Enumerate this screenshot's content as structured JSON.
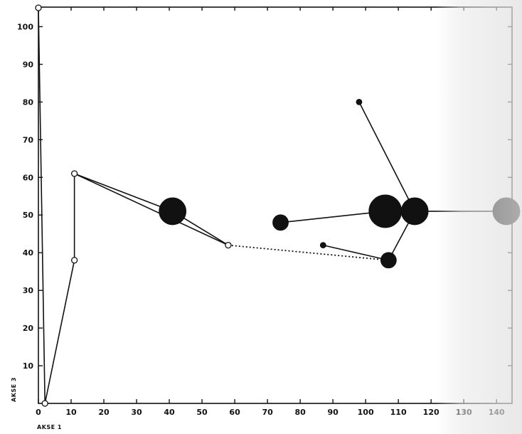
{
  "chart_data": {
    "type": "scatter",
    "title": "",
    "xlabel": "AKSE 1",
    "ylabel": "AKSE 3",
    "xlim": [
      0,
      143
    ],
    "ylim": [
      0,
      105
    ],
    "xticks": [
      0,
      10,
      20,
      30,
      40,
      50,
      60,
      70,
      80,
      90,
      100,
      110,
      120,
      130,
      140
    ],
    "yticks": [
      10,
      20,
      30,
      40,
      50,
      60,
      70,
      80,
      90,
      100
    ],
    "grid": false,
    "points": [
      {
        "id": "o1",
        "x": 0,
        "y": 105,
        "style": "open",
        "size": "small"
      },
      {
        "id": "o2",
        "x": 2,
        "y": 0,
        "style": "open",
        "size": "small"
      },
      {
        "id": "o3",
        "x": 11,
        "y": 38,
        "style": "open",
        "size": "small"
      },
      {
        "id": "o4",
        "x": 11,
        "y": 61,
        "style": "open",
        "size": "small"
      },
      {
        "id": "o5",
        "x": 58,
        "y": 42,
        "style": "open",
        "size": "small"
      },
      {
        "id": "f1",
        "x": 41,
        "y": 51,
        "style": "filled",
        "size": "large"
      },
      {
        "id": "f2",
        "x": 74,
        "y": 48,
        "style": "filled",
        "size": "medium"
      },
      {
        "id": "f3",
        "x": 87,
        "y": 42,
        "style": "filled",
        "size": "small"
      },
      {
        "id": "f4",
        "x": 98,
        "y": 80,
        "style": "filled",
        "size": "small"
      },
      {
        "id": "f5",
        "x": 106,
        "y": 51,
        "style": "filled",
        "size": "xlarge"
      },
      {
        "id": "f6",
        "x": 107,
        "y": 38,
        "style": "filled",
        "size": "medium"
      },
      {
        "id": "f7",
        "x": 115,
        "y": 51,
        "style": "filled",
        "size": "large"
      },
      {
        "id": "f8",
        "x": 143,
        "y": 51,
        "style": "filled",
        "size": "large"
      }
    ],
    "connections": [
      {
        "from": "o1",
        "to": "o2",
        "style": "solid"
      },
      {
        "from": "o2",
        "to": "o3",
        "style": "solid"
      },
      {
        "from": "o3",
        "to": "o4",
        "style": "solid"
      },
      {
        "from": "o4",
        "to": "f1",
        "style": "solid"
      },
      {
        "from": "f1",
        "to": "o5",
        "style": "solid"
      },
      {
        "from": "o4",
        "to": "o5",
        "style": "solid"
      },
      {
        "from": "o5",
        "to": "f6",
        "style": "dotted"
      },
      {
        "from": "f2",
        "to": "f5",
        "style": "solid"
      },
      {
        "from": "f3",
        "to": "f6",
        "style": "solid"
      },
      {
        "from": "f4",
        "to": "f7",
        "style": "solid"
      },
      {
        "from": "f6",
        "to": "f7",
        "style": "solid"
      },
      {
        "from": "f5",
        "to": "f7",
        "style": "solid"
      },
      {
        "from": "f7",
        "to": "f8",
        "style": "solid"
      }
    ]
  }
}
